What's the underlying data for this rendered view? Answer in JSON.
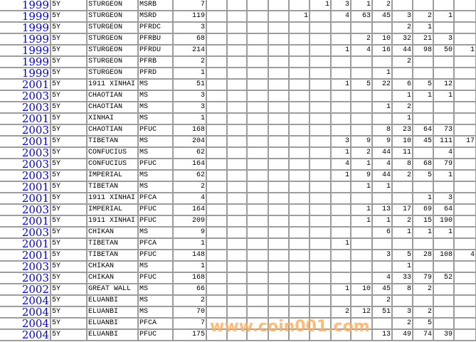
{
  "rows": [
    {
      "year": "1999",
      "term": "5Y",
      "name": "STURGEON",
      "code": "MSRB",
      "total": "7",
      "counts": [
        "",
        "",
        "",
        "",
        "",
        "1",
        "3",
        "1",
        "2",
        "",
        "",
        "",
        ""
      ]
    },
    {
      "year": "1999",
      "term": "5Y",
      "name": "STURGEON",
      "code": "MSRD",
      "total": "119",
      "counts": [
        "",
        "",
        "",
        "",
        "1",
        "",
        "4",
        "63",
        "45",
        "3",
        "2",
        "1",
        ""
      ]
    },
    {
      "year": "1999",
      "term": "5Y",
      "name": "STURGEON",
      "code": "PFRDC",
      "total": "3",
      "counts": [
        "",
        "",
        "",
        "",
        "",
        "",
        "",
        "",
        "",
        "2",
        "1",
        "",
        ""
      ]
    },
    {
      "year": "1999",
      "term": "5Y",
      "name": "STURGEON",
      "code": "PFRBU",
      "total": "68",
      "counts": [
        "",
        "",
        "",
        "",
        "",
        "",
        "",
        "2",
        "10",
        "32",
        "21",
        "3",
        ""
      ]
    },
    {
      "year": "1999",
      "term": "5Y",
      "name": "STURGEON",
      "code": "PFRDU",
      "total": "214",
      "counts": [
        "",
        "",
        "",
        "",
        "",
        "",
        "1",
        "4",
        "16",
        "44",
        "98",
        "50",
        "1"
      ]
    },
    {
      "year": "1999",
      "term": "5Y",
      "name": "STURGEON",
      "code": "PFRB",
      "total": "2",
      "counts": [
        "",
        "",
        "",
        "",
        "",
        "",
        "",
        "",
        "",
        "2",
        "",
        "",
        ""
      ]
    },
    {
      "year": "1999",
      "term": "5Y",
      "name": "STURGEON",
      "code": "PFRD",
      "total": "1",
      "counts": [
        "",
        "",
        "",
        "",
        "",
        "",
        "",
        "",
        "1",
        "",
        "",
        "",
        ""
      ]
    },
    {
      "year": "2001",
      "term": "5Y",
      "name": "1911 XINHAI",
      "code": "MS",
      "total": "51",
      "counts": [
        "",
        "",
        "",
        "",
        "",
        "",
        "1",
        "5",
        "22",
        "6",
        "5",
        "12",
        ""
      ]
    },
    {
      "year": "2003",
      "term": "5Y",
      "name": "CHAOTIAN",
      "code": "MS",
      "total": "3",
      "counts": [
        "",
        "",
        "",
        "",
        "",
        "",
        "",
        "",
        "",
        "1",
        "1",
        "1",
        ""
      ]
    },
    {
      "year": "2003",
      "term": "5Y",
      "name": "CHAOTIAN",
      "code": "MS",
      "total": "3",
      "counts": [
        "",
        "",
        "",
        "",
        "",
        "",
        "",
        "",
        "1",
        "2",
        "",
        "",
        ""
      ]
    },
    {
      "year": "2001",
      "term": "5Y",
      "name": "XINHAI",
      "code": "MS",
      "total": "1",
      "counts": [
        "",
        "",
        "",
        "",
        "",
        "",
        "",
        "",
        "",
        "1",
        "",
        "",
        ""
      ]
    },
    {
      "year": "2003",
      "term": "5Y",
      "name": "CHAOTIAN",
      "code": "PFUC",
      "total": "168",
      "counts": [
        "",
        "",
        "",
        "",
        "",
        "",
        "",
        "",
        "8",
        "23",
        "64",
        "73",
        ""
      ]
    },
    {
      "year": "2001",
      "term": "5Y",
      "name": "TIBETAN",
      "code": "MS",
      "total": "204",
      "counts": [
        "",
        "",
        "",
        "",
        "",
        "",
        "3",
        "9",
        "9",
        "10",
        "45",
        "111",
        "17"
      ]
    },
    {
      "year": "2003",
      "term": "5Y",
      "name": "CONFUCIUS",
      "code": "MS",
      "total": "62",
      "counts": [
        "",
        "",
        "",
        "",
        "",
        "",
        "1",
        "2",
        "44",
        "11",
        "",
        "4",
        ""
      ]
    },
    {
      "year": "2003",
      "term": "5Y",
      "name": "CONFUCIUS",
      "code": "PFUC",
      "total": "164",
      "counts": [
        "",
        "",
        "",
        "",
        "",
        "",
        "4",
        "1",
        "4",
        "8",
        "68",
        "79",
        ""
      ]
    },
    {
      "year": "2003",
      "term": "5Y",
      "name": "IMPERIAL",
      "code": "MS",
      "total": "62",
      "counts": [
        "",
        "",
        "",
        "",
        "",
        "",
        "1",
        "9",
        "44",
        "2",
        "5",
        "1",
        ""
      ]
    },
    {
      "year": "2001",
      "term": "5Y",
      "name": "TIBETAN",
      "code": "MS",
      "total": "2",
      "counts": [
        "",
        "",
        "",
        "",
        "",
        "",
        "",
        "1",
        "1",
        "",
        "",
        "",
        ""
      ]
    },
    {
      "year": "2001",
      "term": "5Y",
      "name": "1911 XINHAI",
      "code": "PFCA",
      "total": "4",
      "counts": [
        "",
        "",
        "",
        "",
        "",
        "",
        "",
        "",
        "",
        "",
        "1",
        "3",
        ""
      ]
    },
    {
      "year": "2003",
      "term": "5Y",
      "name": "IMPERIAL",
      "code": "PFUC",
      "total": "164",
      "counts": [
        "",
        "",
        "",
        "",
        "",
        "",
        "",
        "1",
        "13",
        "17",
        "69",
        "64",
        ""
      ]
    },
    {
      "year": "2001",
      "term": "5Y",
      "name": "1911 XINHAI",
      "code": "PFUC",
      "total": "209",
      "counts": [
        "",
        "",
        "",
        "",
        "",
        "",
        "",
        "1",
        "1",
        "2",
        "15",
        "190",
        ""
      ]
    },
    {
      "year": "2003",
      "term": "5Y",
      "name": "CHIKAN",
      "code": "MS",
      "total": "9",
      "counts": [
        "",
        "",
        "",
        "",
        "",
        "",
        "",
        "",
        "6",
        "1",
        "1",
        "1",
        ""
      ]
    },
    {
      "year": "2001",
      "term": "5Y",
      "name": "TIBETAN",
      "code": "PFCA",
      "total": "1",
      "counts": [
        "",
        "",
        "",
        "",
        "",
        "",
        "1",
        "",
        "",
        "",
        "",
        "",
        ""
      ]
    },
    {
      "year": "2001",
      "term": "5Y",
      "name": "TIBETAN",
      "code": "PFUC",
      "total": "148",
      "counts": [
        "",
        "",
        "",
        "",
        "",
        "",
        "",
        "",
        "3",
        "5",
        "28",
        "108",
        "4"
      ]
    },
    {
      "year": "2003",
      "term": "5Y",
      "name": "CHIKAN",
      "code": "MS",
      "total": "1",
      "counts": [
        "",
        "",
        "",
        "",
        "",
        "",
        "",
        "",
        "",
        "1",
        "",
        "",
        ""
      ]
    },
    {
      "year": "2003",
      "term": "5Y",
      "name": "CHIKAN",
      "code": "PFUC",
      "total": "168",
      "counts": [
        "",
        "",
        "",
        "",
        "",
        "",
        "",
        "",
        "4",
        "33",
        "79",
        "52",
        ""
      ]
    },
    {
      "year": "2002",
      "term": "5Y",
      "name": "GREAT WALL",
      "code": "MS",
      "total": "66",
      "counts": [
        "",
        "",
        "",
        "",
        "",
        "",
        "1",
        "10",
        "45",
        "8",
        "2",
        "",
        ""
      ]
    },
    {
      "year": "2004",
      "term": "5Y",
      "name": "ELUANBI",
      "code": "MS",
      "total": "2",
      "counts": [
        "",
        "",
        "",
        "",
        "",
        "",
        "",
        "",
        "2",
        "",
        "",
        "",
        ""
      ]
    },
    {
      "year": "2004",
      "term": "5Y",
      "name": "ELUANBI",
      "code": "MS",
      "total": "70",
      "counts": [
        "",
        "",
        "",
        "",
        "",
        "",
        "2",
        "12",
        "51",
        "3",
        "2",
        "",
        ""
      ]
    },
    {
      "year": "2004",
      "term": "5Y",
      "name": "ELUANBI",
      "code": "PFCA",
      "total": "7",
      "counts": [
        "",
        "",
        "",
        "",
        "",
        "",
        "",
        "",
        "",
        "2",
        "5",
        "",
        ""
      ]
    },
    {
      "year": "2004",
      "term": "5Y",
      "name": "ELUANBI",
      "code": "PFUC",
      "total": "175",
      "counts": [
        "",
        "",
        "",
        "",
        "",
        "",
        "",
        "",
        "13",
        "49",
        "74",
        "39",
        ""
      ]
    }
  ],
  "watermark": "www.coin001.com"
}
